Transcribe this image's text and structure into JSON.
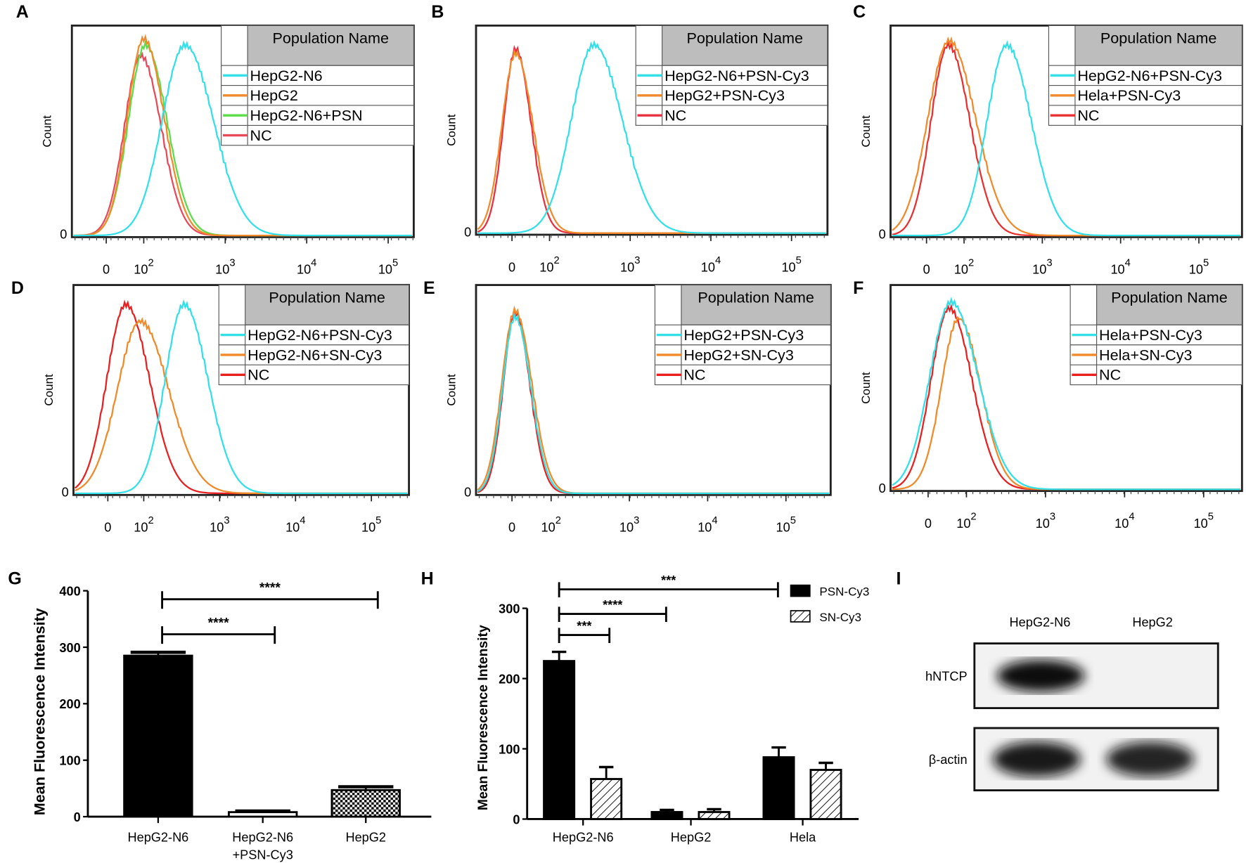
{
  "chart_data": [
    {
      "panel": "A",
      "type": "line",
      "ylabel": "Count",
      "y_zero_label": "0",
      "x_ticks": [
        {
          "base": "0"
        },
        {
          "base": "10",
          "exp": "2"
        },
        {
          "base": "10",
          "exp": "3"
        },
        {
          "base": "10",
          "exp": "4"
        },
        {
          "base": "10",
          "exp": "5"
        }
      ],
      "legend_title": "Population Name",
      "series": [
        {
          "name": "HepG2-N6",
          "color": "#33e0e8",
          "peak": 320,
          "height": 0.9,
          "width_decades": 0.28
        },
        {
          "name": "HepG2",
          "color": "#f08a2a",
          "peak": 100,
          "height": 0.93,
          "width_decades": 0.2
        },
        {
          "name": "HepG2-N6+PSN",
          "color": "#5ddc4a",
          "peak": 105,
          "height": 0.9,
          "width_decades": 0.21
        },
        {
          "name": "NC",
          "color": "#e84a5a",
          "peak": 92,
          "height": 0.85,
          "width_decades": 0.2
        }
      ]
    },
    {
      "panel": "B",
      "type": "line",
      "ylabel": "Count",
      "y_zero_label": "0",
      "x_ticks": [
        {
          "base": "0"
        },
        {
          "base": "10",
          "exp": "2"
        },
        {
          "base": "10",
          "exp": "3"
        },
        {
          "base": "10",
          "exp": "4"
        },
        {
          "base": "10",
          "exp": "5"
        }
      ],
      "legend_title": "Population Name",
      "series": [
        {
          "name": "HepG2-N6+PSN-Cy3",
          "color": "#33e0e8",
          "peak": 355,
          "height": 0.9,
          "width_decades": 0.28
        },
        {
          "name": "HepG2+PSN-Cy3",
          "color": "#f08a2a",
          "peak": 10,
          "height": 0.86,
          "width_decades": 0.17
        },
        {
          "name": "NC",
          "color": "#e83040",
          "peak": 10,
          "height": 0.88,
          "width_decades": 0.15
        }
      ]
    },
    {
      "panel": "C",
      "type": "line",
      "ylabel": "Count",
      "y_zero_label": "0",
      "x_ticks": [
        {
          "base": "0"
        },
        {
          "base": "10",
          "exp": "2"
        },
        {
          "base": "10",
          "exp": "3"
        },
        {
          "base": "10",
          "exp": "4"
        },
        {
          "base": "10",
          "exp": "5"
        }
      ],
      "legend_title": "Population Name",
      "series": [
        {
          "name": "HepG2-N6+PSN-Cy3",
          "color": "#33e0e8",
          "peak": 350,
          "height": 0.9,
          "width_decades": 0.25
        },
        {
          "name": "Hela+PSN-Cy3",
          "color": "#f08a2a",
          "peak": 60,
          "height": 0.92,
          "width_decades": 0.27
        },
        {
          "name": "NC",
          "color": "#e83030",
          "peak": 58,
          "height": 0.9,
          "width_decades": 0.22
        }
      ]
    },
    {
      "panel": "D",
      "type": "line",
      "ylabel": "Count",
      "y_zero_label": "0",
      "x_ticks": [
        {
          "base": "0"
        },
        {
          "base": "10",
          "exp": "2"
        },
        {
          "base": "10",
          "exp": "3"
        },
        {
          "base": "10",
          "exp": "4"
        },
        {
          "base": "10",
          "exp": "5"
        }
      ],
      "legend_title": "Population Name",
      "series": [
        {
          "name": "HepG2-N6+PSN-Cy3",
          "color": "#33e0e8",
          "peak": 340,
          "height": 0.9,
          "width_decades": 0.25
        },
        {
          "name": "HepG2-N6+SN-Cy3",
          "color": "#f08a2a",
          "peak": 90,
          "height": 0.82,
          "width_decades": 0.3
        },
        {
          "name": "NC",
          "color": "#e82020",
          "peak": 50,
          "height": 0.9,
          "width_decades": 0.25
        }
      ]
    },
    {
      "panel": "E",
      "type": "line",
      "ylabel": "Count",
      "y_zero_label": "0",
      "x_ticks": [
        {
          "base": "0"
        },
        {
          "base": "10",
          "exp": "2"
        },
        {
          "base": "10",
          "exp": "3"
        },
        {
          "base": "10",
          "exp": "4"
        },
        {
          "base": "10",
          "exp": "5"
        }
      ],
      "legend_title": "Population Name",
      "series": [
        {
          "name": "HepG2+PSN-Cy3",
          "color": "#33e0e8",
          "peak": 8,
          "height": 0.84,
          "width_decades": 0.16
        },
        {
          "name": "HepG2+SN-Cy3",
          "color": "#f08a2a",
          "peak": 8,
          "height": 0.87,
          "width_decades": 0.17
        },
        {
          "name": "NC",
          "color": "#e82020",
          "peak": 8,
          "height": 0.86,
          "width_decades": 0.15
        }
      ]
    },
    {
      "panel": "F",
      "type": "line",
      "ylabel": "Count",
      "y_zero_label": "0",
      "x_ticks": [
        {
          "base": "0"
        },
        {
          "base": "10",
          "exp": "2"
        },
        {
          "base": "10",
          "exp": "3"
        },
        {
          "base": "10",
          "exp": "4"
        },
        {
          "base": "10",
          "exp": "5"
        }
      ],
      "legend_title": "Population Name",
      "series": [
        {
          "name": "Hela+PSN-Cy3",
          "color": "#33e0e8",
          "peak": 60,
          "height": 0.91,
          "width_decades": 0.27
        },
        {
          "name": "Hela+SN-Cy3",
          "color": "#f08a2a",
          "peak": 80,
          "height": 0.83,
          "width_decades": 0.22
        },
        {
          "name": "NC",
          "color": "#e82020",
          "peak": 55,
          "height": 0.88,
          "width_decades": 0.23
        }
      ]
    },
    {
      "panel": "G",
      "type": "bar",
      "ylabel": "Mean Fluorescence Intensity",
      "ylim": [
        0,
        400
      ],
      "yticks": [
        0,
        100,
        200,
        300,
        400
      ],
      "categories": [
        "HepG2-N6",
        "HepG2-N6\n+PSN-Cy3",
        "HepG2"
      ],
      "category_lines": [
        [
          "HepG2-N6"
        ],
        [
          "HepG2-N6",
          "+PSN-Cy3"
        ],
        [
          "HepG2"
        ]
      ],
      "values": [
        285,
        8,
        47
      ],
      "errors": [
        6,
        2,
        6
      ],
      "fills": [
        "solid",
        "white",
        "checker"
      ],
      "significance": [
        {
          "from": 0,
          "to": 1,
          "label": "****",
          "y": 323
        },
        {
          "from": 0,
          "to": 2,
          "label": "****",
          "y": 385
        }
      ]
    },
    {
      "panel": "H",
      "type": "bar",
      "ylabel": "Mean Fluorescence Intensity",
      "ylim": [
        0,
        300
      ],
      "yticks": [
        0,
        100,
        200,
        300
      ],
      "categories": [
        "HepG2-N6",
        "HepG2",
        "Hela"
      ],
      "series": [
        {
          "name": "PSN-Cy3",
          "fill": "solid",
          "values": [
            225,
            10,
            88
          ],
          "errors": [
            13,
            3,
            14
          ]
        },
        {
          "name": "SN-Cy3",
          "fill": "hatch",
          "values": [
            57,
            10,
            70
          ],
          "errors": [
            17,
            4,
            10
          ]
        }
      ],
      "significance": [
        {
          "from": [
            0,
            0
          ],
          "to": [
            0,
            1
          ],
          "label": "***",
          "y": 262
        },
        {
          "from": [
            0,
            0
          ],
          "to": [
            1,
            0
          ],
          "label": "****",
          "y": 292
        },
        {
          "from": [
            0,
            0
          ],
          "to": [
            2,
            0
          ],
          "label": "***",
          "y": 327
        }
      ]
    }
  ],
  "labels": {
    "A": "A",
    "B": "B",
    "C": "C",
    "D": "D",
    "E": "E",
    "F": "F",
    "G": "G",
    "H": "H",
    "I": "I"
  },
  "blot": {
    "lanes": [
      "HepG2-N6",
      "HepG2"
    ],
    "rows": [
      {
        "name": "hNTCP",
        "intensity": [
          1.0,
          0.0
        ]
      },
      {
        "name": "β-actin",
        "intensity": [
          0.95,
          0.9
        ]
      }
    ]
  }
}
